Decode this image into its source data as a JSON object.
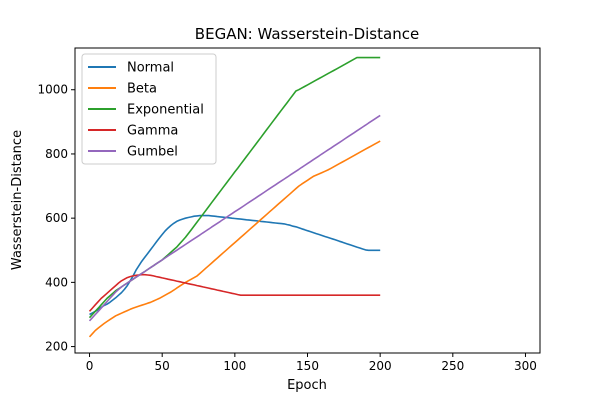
{
  "chart_data": {
    "type": "line",
    "title": "BEGAN: Wasserstein-Distance",
    "xlabel": "Epoch",
    "ylabel": "Wasserstein-Distance",
    "xlim": [
      -10,
      310
    ],
    "ylim": [
      180,
      1130
    ],
    "x_ticks": [
      0,
      50,
      100,
      150,
      200,
      250,
      300
    ],
    "y_ticks": [
      200,
      400,
      600,
      800,
      1000
    ],
    "grid": false,
    "legend_position": "upper-left",
    "x_step": 2,
    "series": [
      {
        "name": "Normal",
        "color": "#1f77b4",
        "values": [
          300,
          305,
          310,
          315,
          322,
          328,
          332,
          338,
          345,
          352,
          360,
          368,
          378,
          390,
          405,
          420,
          438,
          452,
          466,
          478,
          490,
          502,
          514,
          526,
          538,
          549,
          560,
          569,
          577,
          584,
          590,
          594,
          597,
          600,
          602,
          604,
          606,
          607,
          608,
          608,
          608,
          608,
          607,
          606,
          605,
          604,
          603,
          602,
          601,
          600,
          599,
          598,
          597,
          596,
          595,
          594,
          593,
          592,
          591,
          590,
          589,
          588,
          587,
          586,
          585,
          584,
          583,
          582,
          580,
          578,
          575,
          573,
          570,
          567,
          564,
          561,
          558,
          555,
          552,
          549,
          546,
          543,
          540,
          537,
          534,
          531,
          528,
          525,
          522,
          519,
          516,
          513,
          510,
          507,
          504,
          501,
          500,
          500,
          500,
          500,
          500
        ]
      },
      {
        "name": "Beta",
        "color": "#ff7f0e",
        "values": [
          230,
          240,
          250,
          258,
          265,
          272,
          278,
          284,
          290,
          296,
          300,
          304,
          308,
          312,
          316,
          320,
          323,
          326,
          329,
          332,
          335,
          338,
          342,
          346,
          350,
          355,
          360,
          365,
          370,
          376,
          382,
          388,
          394,
          400,
          405,
          410,
          415,
          420,
          428,
          436,
          444,
          452,
          460,
          468,
          476,
          484,
          492,
          500,
          508,
          516,
          524,
          532,
          540,
          548,
          556,
          564,
          572,
          580,
          588,
          596,
          604,
          612,
          620,
          628,
          636,
          644,
          652,
          660,
          668,
          676,
          684,
          692,
          700,
          706,
          712,
          718,
          724,
          730,
          734,
          738,
          742,
          746,
          750,
          755,
          760,
          765,
          770,
          775,
          780,
          785,
          790,
          795,
          800,
          805,
          810,
          815,
          820,
          825,
          830,
          835,
          840
        ]
      },
      {
        "name": "Exponential",
        "color": "#2ca02c",
        "values": [
          290,
          300,
          310,
          320,
          330,
          340,
          350,
          358,
          366,
          374,
          380,
          386,
          392,
          398,
          404,
          410,
          416,
          422,
          428,
          434,
          440,
          446,
          452,
          458,
          464,
          470,
          478,
          486,
          494,
          502,
          510,
          520,
          530,
          540,
          552,
          564,
          576,
          588,
          600,
          612,
          624,
          636,
          648,
          660,
          672,
          684,
          696,
          708,
          720,
          732,
          744,
          756,
          768,
          780,
          792,
          804,
          816,
          828,
          840,
          852,
          864,
          876,
          888,
          900,
          912,
          924,
          936,
          948,
          960,
          972,
          984,
          996,
          1000,
          1005,
          1010,
          1015,
          1020,
          1025,
          1030,
          1035,
          1040,
          1045,
          1050,
          1055,
          1060,
          1065,
          1070,
          1075,
          1080,
          1085,
          1090,
          1095,
          1100,
          1100,
          1100,
          1100,
          1100,
          1100,
          1100,
          1100,
          1100
        ]
      },
      {
        "name": "Gamma",
        "color": "#d62728",
        "values": [
          310,
          320,
          330,
          340,
          350,
          358,
          366,
          374,
          382,
          390,
          398,
          405,
          410,
          415,
          418,
          420,
          422,
          423,
          424,
          424,
          423,
          422,
          420,
          418,
          416,
          414,
          412,
          410,
          408,
          406,
          404,
          402,
          400,
          398,
          396,
          394,
          392,
          390,
          388,
          386,
          384,
          382,
          380,
          378,
          376,
          374,
          372,
          370,
          368,
          366,
          364,
          362,
          360,
          360,
          360,
          360,
          360,
          360,
          360,
          360,
          360,
          360,
          360,
          360,
          360,
          360,
          360,
          360,
          360,
          360,
          360,
          360,
          360,
          360,
          360,
          360,
          360,
          360,
          360,
          360,
          360,
          360,
          360,
          360,
          360,
          360,
          360,
          360,
          360,
          360,
          360,
          360,
          360,
          360,
          360,
          360,
          360,
          360,
          360,
          360,
          360
        ]
      },
      {
        "name": "Gumbel",
        "color": "#9467bd",
        "values": [
          280,
          290,
          300,
          310,
          320,
          330,
          340,
          350,
          360,
          370,
          378,
          386,
          392,
          398,
          404,
          410,
          416,
          422,
          428,
          434,
          440,
          446,
          452,
          458,
          464,
          470,
          476,
          482,
          488,
          494,
          500,
          506,
          512,
          518,
          524,
          530,
          536,
          542,
          548,
          554,
          560,
          566,
          572,
          578,
          584,
          590,
          596,
          602,
          608,
          614,
          620,
          626,
          632,
          638,
          644,
          650,
          656,
          662,
          668,
          674,
          680,
          686,
          692,
          698,
          704,
          710,
          716,
          722,
          728,
          734,
          740,
          746,
          752,
          758,
          764,
          770,
          776,
          782,
          788,
          794,
          800,
          806,
          812,
          818,
          824,
          830,
          836,
          842,
          848,
          854,
          860,
          866,
          872,
          878,
          884,
          890,
          896,
          902,
          908,
          914,
          920
        ]
      }
    ]
  }
}
